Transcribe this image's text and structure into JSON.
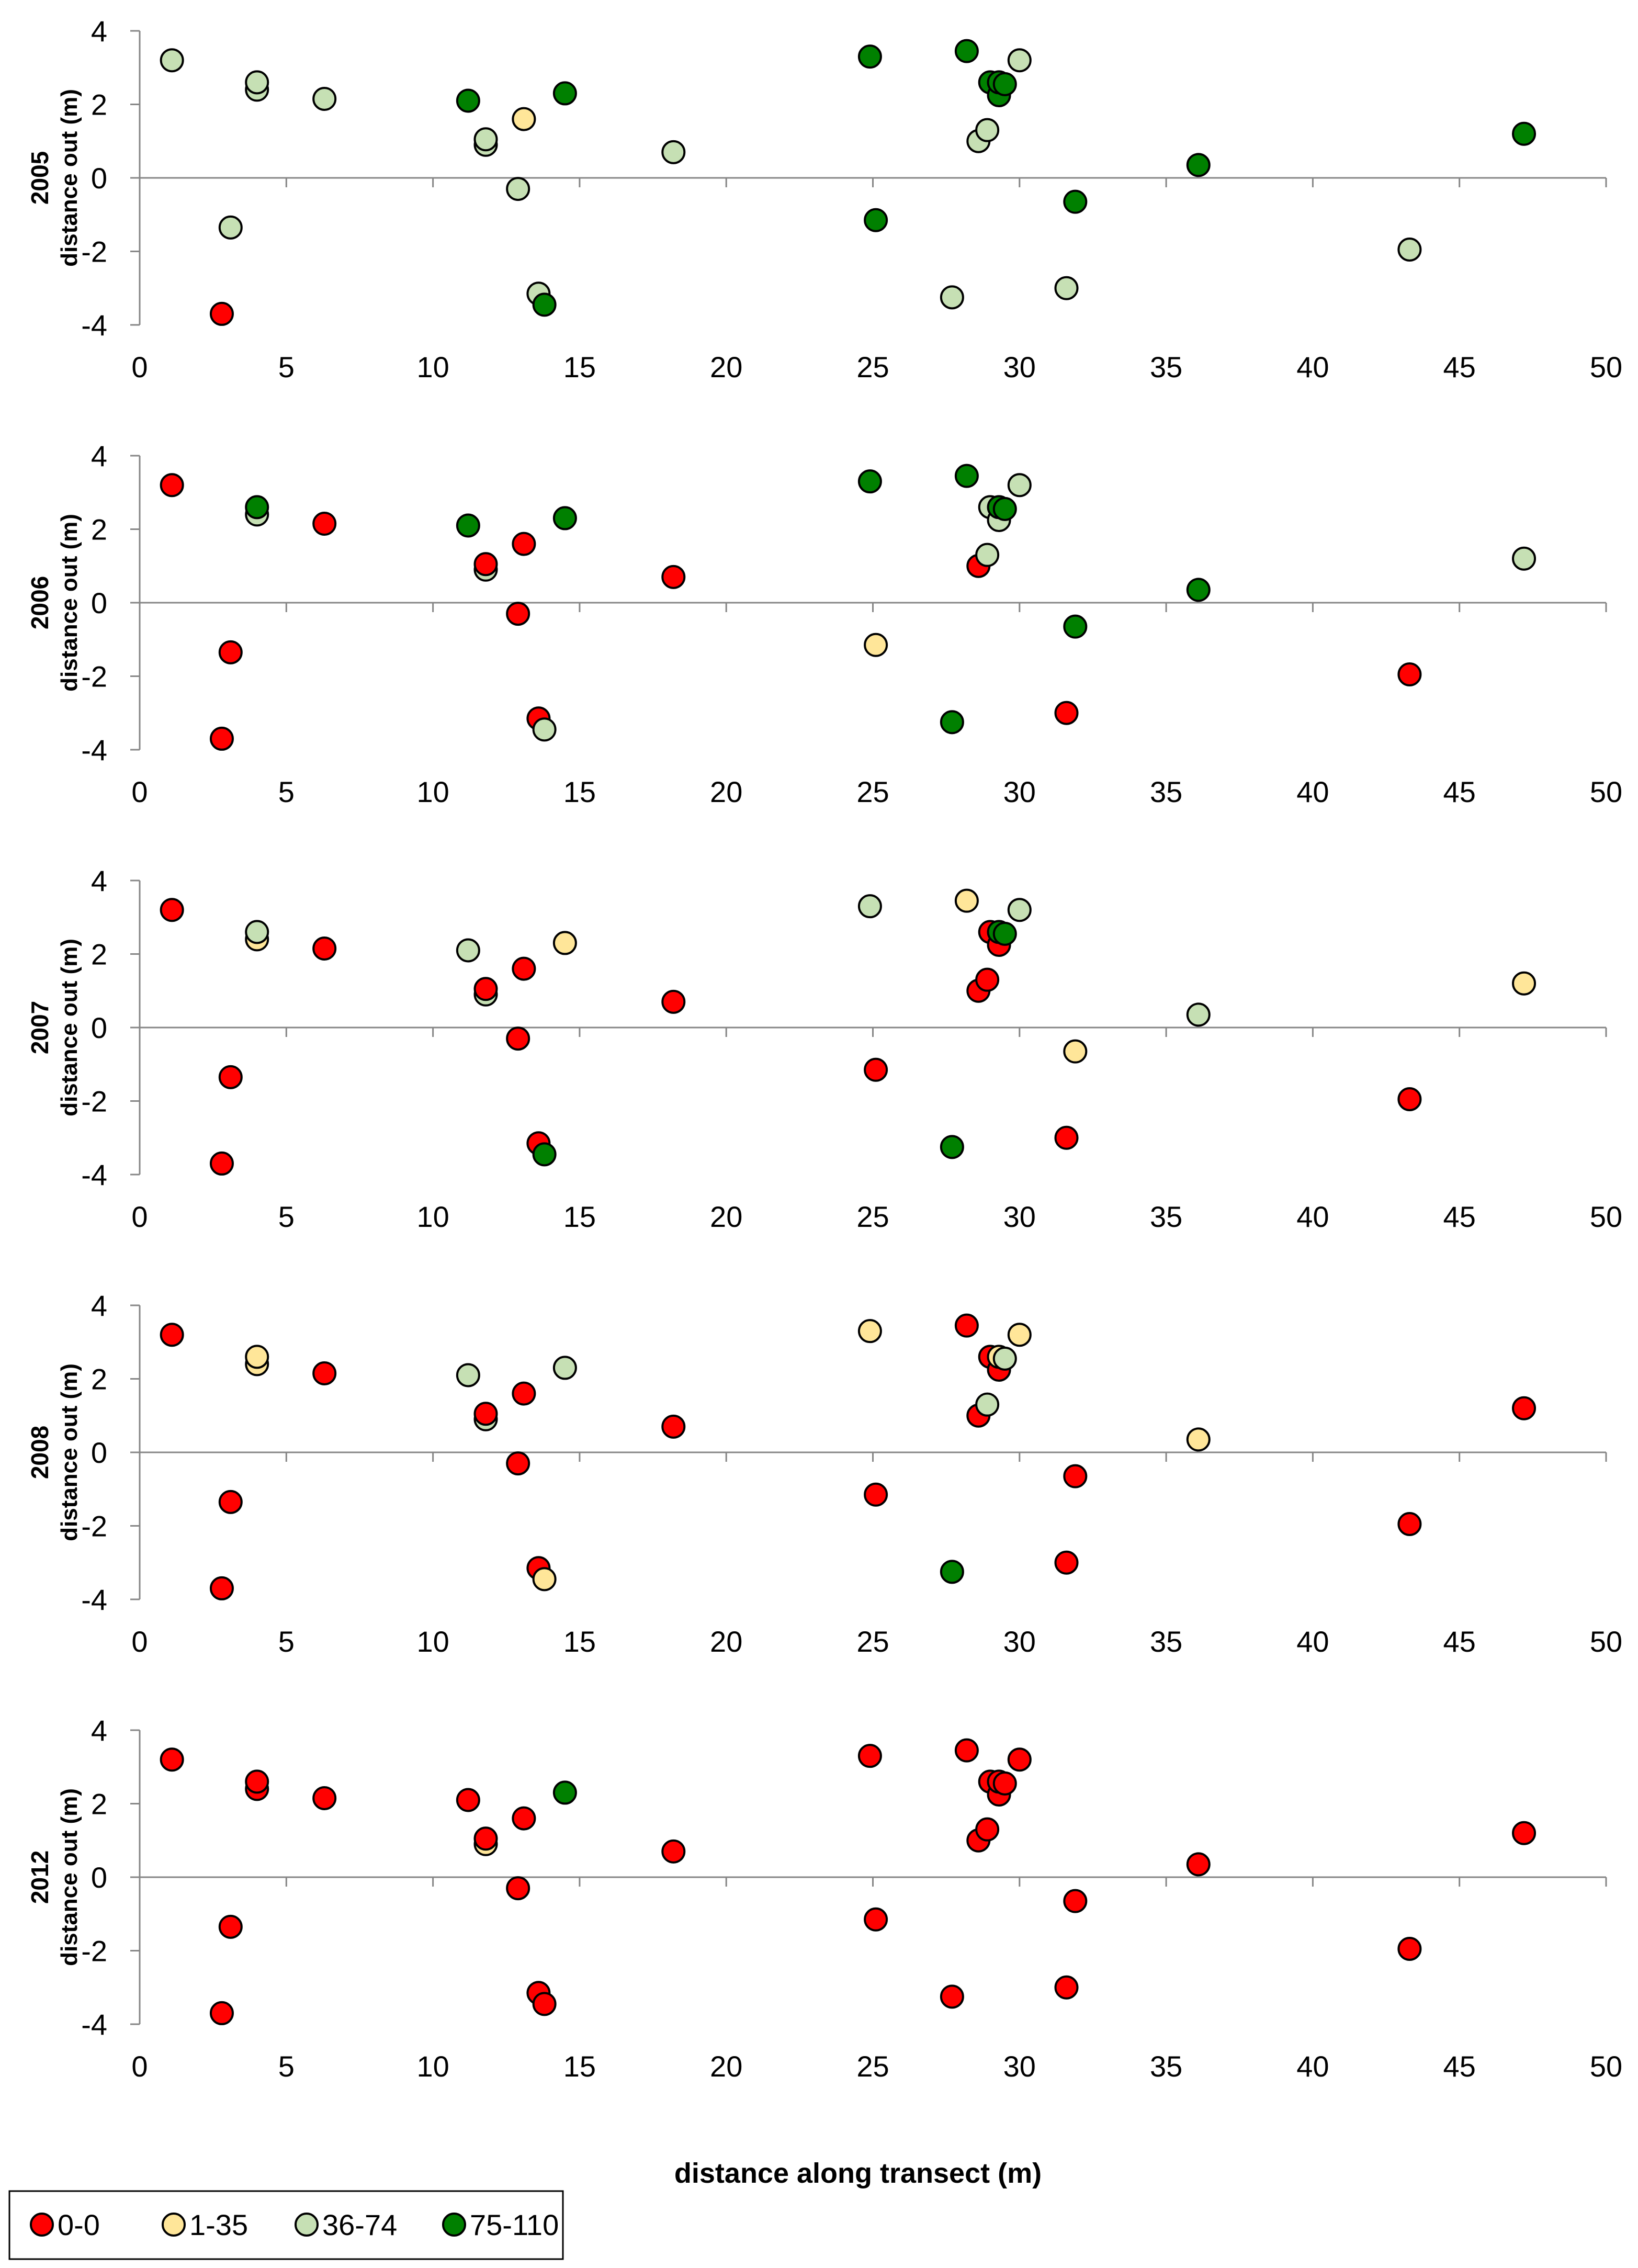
{
  "chart_data": {
    "type": "scatter",
    "xlabel": "distance along transect (m)",
    "ylabel": "distance out (m)",
    "xlim": [
      0,
      50
    ],
    "ylim": [
      -4,
      4
    ],
    "xticks": [
      0,
      5,
      10,
      15,
      20,
      25,
      30,
      35,
      40,
      45,
      50
    ],
    "yticks": [
      -4,
      -2,
      0,
      2,
      4
    ],
    "legend_position": "bottom-left",
    "categories": [
      {
        "key": "c0",
        "label": "0-0",
        "color": "#ff0000"
      },
      {
        "key": "c1",
        "label": "1-35",
        "color": "#ffe699"
      },
      {
        "key": "c2",
        "label": "36-74",
        "color": "#c6e0b4"
      },
      {
        "key": "c3",
        "label": "75-110",
        "color": "#008000"
      }
    ],
    "positions": [
      {
        "x": 1.1,
        "y": 3.2
      },
      {
        "x": 2.8,
        "y": -3.7
      },
      {
        "x": 3.1,
        "y": -1.35
      },
      {
        "x": 4.0,
        "y": 2.4
      },
      {
        "x": 4.0,
        "y": 2.6
      },
      {
        "x": 6.3,
        "y": 2.15
      },
      {
        "x": 11.2,
        "y": 2.1
      },
      {
        "x": 11.8,
        "y": 0.9
      },
      {
        "x": 11.8,
        "y": 1.05
      },
      {
        "x": 12.9,
        "y": -0.3
      },
      {
        "x": 13.1,
        "y": 1.6
      },
      {
        "x": 13.6,
        "y": -3.15
      },
      {
        "x": 13.8,
        "y": -3.45
      },
      {
        "x": 14.5,
        "y": 2.3
      },
      {
        "x": 18.2,
        "y": 0.7
      },
      {
        "x": 24.9,
        "y": 3.3
      },
      {
        "x": 25.1,
        "y": -1.15
      },
      {
        "x": 27.7,
        "y": -3.25
      },
      {
        "x": 28.2,
        "y": 3.45
      },
      {
        "x": 28.6,
        "y": 1.0
      },
      {
        "x": 28.9,
        "y": 1.3
      },
      {
        "x": 29.0,
        "y": 2.6
      },
      {
        "x": 29.3,
        "y": 2.25
      },
      {
        "x": 29.3,
        "y": 2.6
      },
      {
        "x": 29.5,
        "y": 2.55
      },
      {
        "x": 30.0,
        "y": 3.2
      },
      {
        "x": 31.6,
        "y": -3.0
      },
      {
        "x": 31.9,
        "y": -0.65
      },
      {
        "x": 36.1,
        "y": 0.35
      },
      {
        "x": 43.3,
        "y": -1.95
      },
      {
        "x": 47.2,
        "y": 1.2
      }
    ],
    "panels": [
      {
        "year": "2005",
        "cats": [
          "c2",
          "c0",
          "c2",
          "c2",
          "c2",
          "c2",
          "c3",
          "c2",
          "c2",
          "c2",
          "c1",
          "c2",
          "c3",
          "c3",
          "c2",
          "c3",
          "c3",
          "c2",
          "c3",
          "c2",
          "c2",
          "c3",
          "c3",
          "c3",
          "c3",
          "c2",
          "c2",
          "c3",
          "c3",
          "c2",
          "c3"
        ]
      },
      {
        "year": "2006",
        "cats": [
          "c0",
          "c0",
          "c0",
          "c2",
          "c3",
          "c0",
          "c3",
          "c2",
          "c0",
          "c0",
          "c0",
          "c0",
          "c2",
          "c3",
          "c0",
          "c3",
          "c1",
          "c3",
          "c3",
          "c0",
          "c2",
          "c2",
          "c2",
          "c3",
          "c3",
          "c2",
          "c0",
          "c3",
          "c3",
          "c0",
          "c2"
        ]
      },
      {
        "year": "2007",
        "cats": [
          "c0",
          "c0",
          "c0",
          "c1",
          "c2",
          "c0",
          "c2",
          "c2",
          "c0",
          "c0",
          "c0",
          "c0",
          "c3",
          "c1",
          "c0",
          "c2",
          "c0",
          "c3",
          "c1",
          "c0",
          "c0",
          "c0",
          "c0",
          "c3",
          "c3",
          "c2",
          "c0",
          "c1",
          "c2",
          "c0",
          "c1"
        ]
      },
      {
        "year": "2008",
        "cats": [
          "c0",
          "c0",
          "c0",
          "c1",
          "c1",
          "c0",
          "c2",
          "c2",
          "c0",
          "c0",
          "c0",
          "c0",
          "c1",
          "c2",
          "c0",
          "c1",
          "c0",
          "c3",
          "c0",
          "c0",
          "c2",
          "c0",
          "c0",
          "c1",
          "c2",
          "c1",
          "c0",
          "c0",
          "c1",
          "c0",
          "c0"
        ]
      },
      {
        "year": "2012",
        "cats": [
          "c0",
          "c0",
          "c0",
          "c0",
          "c0",
          "c0",
          "c0",
          "c1",
          "c0",
          "c0",
          "c0",
          "c0",
          "c0",
          "c3",
          "c0",
          "c0",
          "c0",
          "c0",
          "c0",
          "c0",
          "c0",
          "c0",
          "c0",
          "c0",
          "c0",
          "c0",
          "c0",
          "c0",
          "c0",
          "c0",
          "c0"
        ]
      }
    ]
  }
}
